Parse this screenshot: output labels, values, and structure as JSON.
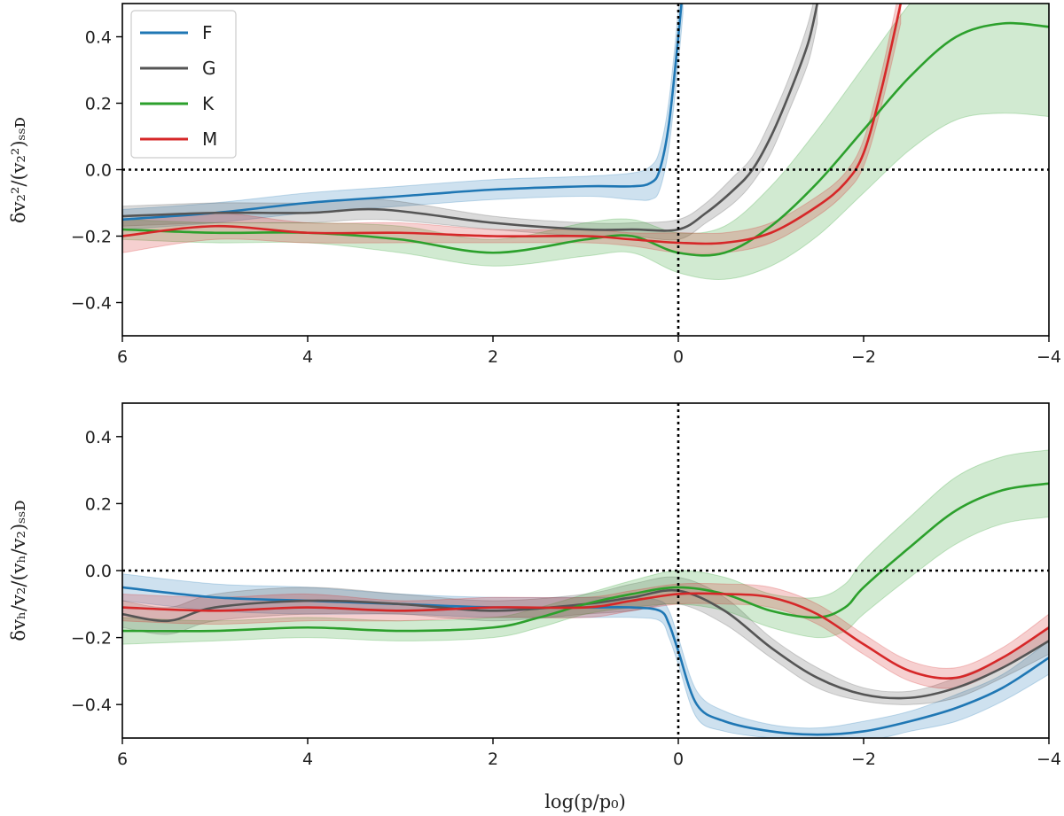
{
  "chart_data": [
    {
      "type": "line",
      "ylabel": "δv₂²/(v₂²)ₛₛᴅ",
      "xlabel": "",
      "xlim": [
        6,
        -4
      ],
      "ylim": [
        -0.5,
        0.5
      ],
      "x_ticks": [
        6,
        4,
        2,
        0,
        -2,
        -4
      ],
      "y_ticks": [
        -0.4,
        -0.2,
        0.0,
        0.2,
        0.4
      ],
      "reference_lines": {
        "x": 0,
        "y": 0
      },
      "legend": {
        "placement": "top-left",
        "entries": [
          "F",
          "G",
          "K",
          "M"
        ]
      },
      "series": [
        {
          "name": "F",
          "color": "#1f77b4",
          "x": [
            6,
            5,
            4,
            3,
            2,
            1,
            0.5,
            0.3,
            0.2,
            0.1,
            0.0,
            -0.05
          ],
          "y": [
            -0.15,
            -0.13,
            -0.1,
            -0.08,
            -0.06,
            -0.05,
            -0.05,
            -0.04,
            0.0,
            0.14,
            0.4,
            0.55
          ],
          "band": [
            0.03,
            0.03,
            0.03,
            0.03,
            0.03,
            0.03,
            0.04,
            0.05,
            0.06,
            0.07,
            0.08,
            0.08
          ]
        },
        {
          "name": "G",
          "color": "#555555",
          "x": [
            6,
            5,
            4,
            3.2,
            2,
            1,
            0.5,
            0,
            -0.3,
            -0.6,
            -0.8,
            -1.0,
            -1.2,
            -1.4,
            -1.5
          ],
          "y": [
            -0.14,
            -0.13,
            -0.13,
            -0.12,
            -0.16,
            -0.18,
            -0.18,
            -0.18,
            -0.13,
            -0.06,
            0.0,
            0.1,
            0.23,
            0.38,
            0.5
          ],
          "band": [
            0.03,
            0.03,
            0.03,
            0.03,
            0.02,
            0.02,
            0.02,
            0.03,
            0.03,
            0.04,
            0.04,
            0.05,
            0.05,
            0.06,
            0.06
          ]
        },
        {
          "name": "K",
          "color": "#2ca02c",
          "x": [
            6,
            5,
            4,
            3,
            2,
            1,
            0.5,
            0,
            -0.5,
            -1,
            -1.5,
            -2,
            -2.5,
            -3,
            -3.5,
            -4
          ],
          "y": [
            -0.18,
            -0.19,
            -0.19,
            -0.21,
            -0.25,
            -0.21,
            -0.2,
            -0.25,
            -0.25,
            -0.17,
            -0.04,
            0.12,
            0.28,
            0.4,
            0.44,
            0.43
          ],
          "band": [
            0.03,
            0.03,
            0.03,
            0.04,
            0.04,
            0.05,
            0.05,
            0.06,
            0.08,
            0.12,
            0.16,
            0.19,
            0.22,
            0.25,
            0.27,
            0.27
          ]
        },
        {
          "name": "M",
          "color": "#d62728",
          "x": [
            6,
            5,
            4,
            3,
            2,
            1,
            0.5,
            0,
            -0.5,
            -1,
            -1.5,
            -1.8,
            -2,
            -2.2,
            -2.4
          ],
          "y": [
            -0.2,
            -0.17,
            -0.19,
            -0.19,
            -0.2,
            -0.2,
            -0.21,
            -0.22,
            -0.22,
            -0.19,
            -0.11,
            -0.04,
            0.05,
            0.25,
            0.5
          ],
          "band": [
            0.05,
            0.04,
            0.03,
            0.03,
            0.02,
            0.02,
            0.02,
            0.03,
            0.03,
            0.03,
            0.03,
            0.03,
            0.04,
            0.05,
            0.06
          ]
        }
      ]
    },
    {
      "type": "line",
      "ylabel": "δvₕ/v₂/(vₕ/v₂)ₛₛᴅ",
      "xlabel": "log(p/p₀)",
      "xlim": [
        6,
        -4
      ],
      "ylim": [
        -0.5,
        0.5
      ],
      "x_ticks": [
        6,
        4,
        2,
        0,
        -2,
        -4
      ],
      "y_ticks": [
        -0.4,
        -0.2,
        0.0,
        0.2,
        0.4
      ],
      "reference_lines": {
        "x": 0,
        "y": 0
      },
      "series": [
        {
          "name": "F",
          "color": "#1f77b4",
          "x": [
            6,
            5,
            4,
            3,
            2,
            1,
            0.5,
            0.2,
            0.1,
            0,
            -0.2,
            -0.5,
            -1,
            -1.5,
            -2,
            -2.5,
            -3,
            -3.5,
            -4
          ],
          "y": [
            -0.05,
            -0.08,
            -0.09,
            -0.1,
            -0.11,
            -0.11,
            -0.11,
            -0.12,
            -0.16,
            -0.24,
            -0.4,
            -0.45,
            -0.48,
            -0.49,
            -0.48,
            -0.45,
            -0.41,
            -0.35,
            -0.26
          ],
          "band": [
            0.04,
            0.04,
            0.04,
            0.03,
            0.03,
            0.03,
            0.03,
            0.03,
            0.04,
            0.04,
            0.04,
            0.03,
            0.02,
            0.02,
            0.03,
            0.03,
            0.04,
            0.04,
            0.05
          ]
        },
        {
          "name": "G",
          "color": "#555555",
          "x": [
            6,
            5.5,
            5,
            4,
            3,
            2,
            1,
            0.5,
            0,
            -0.5,
            -1,
            -1.5,
            -2,
            -2.5,
            -3,
            -3.5,
            -4
          ],
          "y": [
            -0.13,
            -0.15,
            -0.11,
            -0.09,
            -0.1,
            -0.12,
            -0.1,
            -0.08,
            -0.06,
            -0.12,
            -0.23,
            -0.32,
            -0.37,
            -0.38,
            -0.35,
            -0.29,
            -0.21
          ],
          "band": [
            0.04,
            0.04,
            0.04,
            0.04,
            0.03,
            0.03,
            0.03,
            0.04,
            0.04,
            0.04,
            0.03,
            0.03,
            0.02,
            0.02,
            0.03,
            0.03,
            0.04
          ]
        },
        {
          "name": "K",
          "color": "#2ca02c",
          "x": [
            6,
            5,
            4,
            3,
            2,
            1.5,
            1,
            0.5,
            0,
            -0.5,
            -1,
            -1.5,
            -1.8,
            -2,
            -2.5,
            -3,
            -3.5,
            -4
          ],
          "y": [
            -0.18,
            -0.18,
            -0.17,
            -0.18,
            -0.17,
            -0.14,
            -0.1,
            -0.07,
            -0.05,
            -0.07,
            -0.12,
            -0.14,
            -0.11,
            -0.05,
            0.07,
            0.18,
            0.24,
            0.26
          ],
          "band": [
            0.04,
            0.03,
            0.03,
            0.03,
            0.03,
            0.03,
            0.03,
            0.04,
            0.05,
            0.05,
            0.05,
            0.06,
            0.07,
            0.08,
            0.09,
            0.1,
            0.1,
            0.1
          ]
        },
        {
          "name": "M",
          "color": "#d62728",
          "x": [
            6,
            5,
            4,
            3,
            2,
            1,
            0.5,
            0,
            -0.5,
            -1,
            -1.5,
            -2,
            -2.5,
            -3,
            -3.5,
            -4
          ],
          "y": [
            -0.11,
            -0.12,
            -0.11,
            -0.12,
            -0.11,
            -0.11,
            -0.09,
            -0.07,
            -0.07,
            -0.08,
            -0.13,
            -0.22,
            -0.3,
            -0.32,
            -0.26,
            -0.17
          ],
          "band": [
            0.04,
            0.04,
            0.04,
            0.03,
            0.03,
            0.03,
            0.03,
            0.03,
            0.03,
            0.03,
            0.03,
            0.03,
            0.03,
            0.03,
            0.03,
            0.04
          ]
        }
      ]
    }
  ]
}
